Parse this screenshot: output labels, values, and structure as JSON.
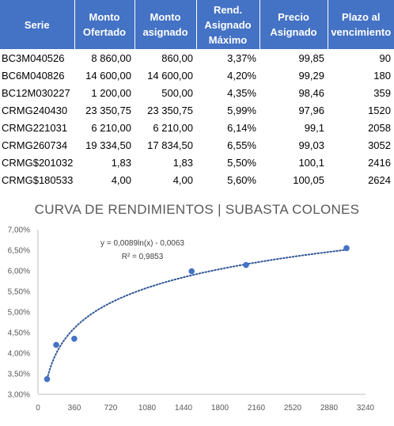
{
  "table": {
    "headers": [
      {
        "l1": "Serie",
        "l2": "",
        "l3": ""
      },
      {
        "l1": "Monto",
        "l2": "Ofertado",
        "l3": ""
      },
      {
        "l1": "Monto",
        "l2": "asignado",
        "l3": ""
      },
      {
        "l1": "Rend.",
        "l2": "Asignado",
        "l3": "Máximo"
      },
      {
        "l1": "Precio",
        "l2": "Asignado",
        "l3": ""
      },
      {
        "l1": "Plazo al",
        "l2": "vencimiento",
        "l3": ""
      }
    ],
    "rows": [
      {
        "serie": "BC3M040526",
        "ofertado": "8 860,00",
        "asignado": "860,00",
        "rend": "3,37%",
        "precio": "99,85",
        "plazo": "90"
      },
      {
        "serie": "BC6M040826",
        "ofertado": "14 600,00",
        "asignado": "14 600,00",
        "rend": "4,20%",
        "precio": "99,29",
        "plazo": "180"
      },
      {
        "serie": "BC12M030227",
        "ofertado": "1 200,00",
        "asignado": "500,00",
        "rend": "4,35%",
        "precio": "98,46",
        "plazo": "359"
      },
      {
        "serie": "CRMG240430",
        "ofertado": "23 350,75",
        "asignado": "23 350,75",
        "rend": "5,99%",
        "precio": "97,96",
        "plazo": "1520"
      },
      {
        "serie": "CRMG221031",
        "ofertado": "6 210,00",
        "asignado": "6 210,00",
        "rend": "6,14%",
        "precio": "99,1",
        "plazo": "2058"
      },
      {
        "serie": "CRMG260734",
        "ofertado": "19 334,50",
        "asignado": "17 834,50",
        "rend": "6,55%",
        "precio": "99,03",
        "plazo": "3052"
      },
      {
        "serie": "CRMG$201032",
        "ofertado": "1,83",
        "asignado": "1,83",
        "rend": "5,50%",
        "precio": "100,1",
        "plazo": "2416"
      },
      {
        "serie": "CRMG$180533",
        "ofertado": "4,00",
        "asignado": "4,00",
        "rend": "5,60%",
        "precio": "100,05",
        "plazo": "2624"
      }
    ]
  },
  "chart_data": {
    "type": "scatter",
    "title": "CURVA DE RENDIMIENTOS | SUBASTA COLONES",
    "xlabel": "",
    "ylabel": "",
    "xlim": [
      0,
      3240
    ],
    "ylim": [
      3.0,
      7.0
    ],
    "x_ticks": [
      "0",
      "360",
      "720",
      "1080",
      "1440",
      "1800",
      "2160",
      "2520",
      "2880",
      "3240"
    ],
    "y_ticks": [
      "3,00%",
      "3,50%",
      "4,00%",
      "4,50%",
      "5,00%",
      "5,50%",
      "6,00%",
      "6,50%",
      "7,00%"
    ],
    "points": [
      {
        "x": 90,
        "y": 3.37
      },
      {
        "x": 180,
        "y": 4.2
      },
      {
        "x": 359,
        "y": 4.35
      },
      {
        "x": 1520,
        "y": 5.99
      },
      {
        "x": 2058,
        "y": 6.14
      },
      {
        "x": 3052,
        "y": 6.55
      }
    ],
    "trendline": {
      "type": "logarithmic",
      "a": 0.0089,
      "b": -0.0063,
      "x_range": [
        90,
        3052
      ]
    },
    "equation_text": "y = 0,0089ln(x) - 0,0063",
    "r2_text": "R² = 0,9853",
    "grid": false,
    "legend": "none",
    "point_color": "#4472c4",
    "trend_color": "#2f5597"
  }
}
